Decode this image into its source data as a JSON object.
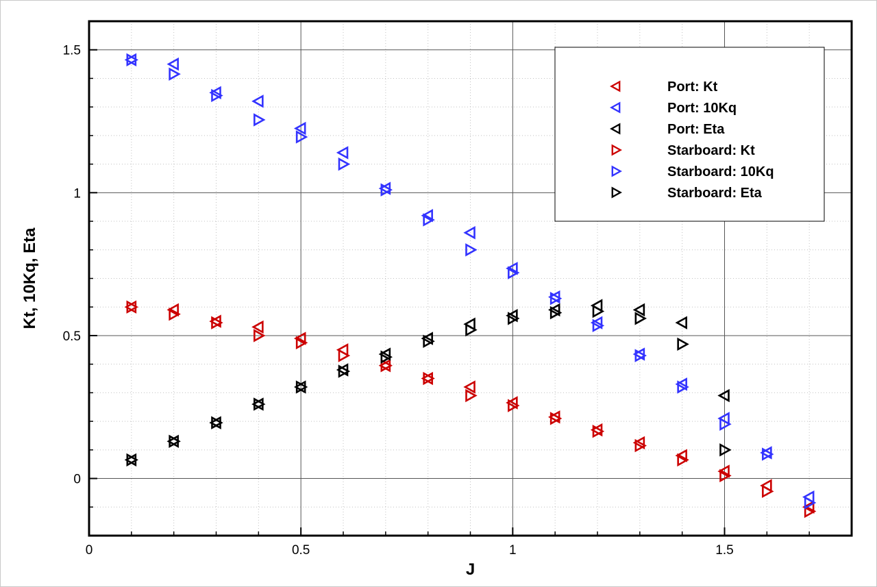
{
  "chart_data": {
    "type": "scatter",
    "xlabel": "J",
    "ylabel": "Kt, 10Kq, Eta",
    "xlim": [
      0,
      1.8
    ],
    "ylim": [
      -0.2,
      1.6
    ],
    "x_ticks": [
      0,
      0.5,
      1,
      1.5
    ],
    "y_ticks": [
      0,
      0.5,
      1,
      1.5
    ],
    "x_tick_labels": [
      "0",
      "0.5",
      "1",
      "1.5"
    ],
    "y_tick_labels": [
      "0",
      "0.5",
      "1",
      "1.5"
    ],
    "grid": true,
    "minor_grid": true,
    "legend_position": "top-right",
    "series": [
      {
        "name": "Port: Kt",
        "marker": "triangle-left",
        "color": "#cc0000",
        "x": [
          0.1,
          0.2,
          0.3,
          0.4,
          0.5,
          0.6,
          0.7,
          0.8,
          0.9,
          1.0,
          1.1,
          1.2,
          1.3,
          1.4,
          1.5,
          1.6,
          1.7
        ],
        "y": [
          0.6,
          0.59,
          0.55,
          0.53,
          0.49,
          0.45,
          0.395,
          0.35,
          0.32,
          0.265,
          0.215,
          0.17,
          0.125,
          0.08,
          0.025,
          -0.025,
          -0.1
        ]
      },
      {
        "name": "Port: 10Kq",
        "marker": "triangle-left",
        "color": "#3333ff",
        "x": [
          0.1,
          0.2,
          0.3,
          0.4,
          0.5,
          0.6,
          0.7,
          0.8,
          0.9,
          1.0,
          1.1,
          1.2,
          1.3,
          1.4,
          1.5,
          1.6,
          1.7
        ],
        "y": [
          1.465,
          1.45,
          1.35,
          1.32,
          1.225,
          1.14,
          1.015,
          0.92,
          0.86,
          0.735,
          0.635,
          0.545,
          0.435,
          0.33,
          0.21,
          0.09,
          -0.065
        ]
      },
      {
        "name": "Port: Eta",
        "marker": "triangle-left",
        "color": "#000000",
        "x": [
          0.1,
          0.2,
          0.3,
          0.4,
          0.5,
          0.6,
          0.7,
          0.8,
          0.9,
          1.0,
          1.1,
          1.2,
          1.3,
          1.4,
          1.5
        ],
        "y": [
          0.065,
          0.13,
          0.195,
          0.26,
          0.32,
          0.38,
          0.435,
          0.49,
          0.54,
          0.57,
          0.59,
          0.605,
          0.59,
          0.545,
          0.29
        ]
      },
      {
        "name": "Starboard: Kt",
        "marker": "triangle-right",
        "color": "#cc0000",
        "x": [
          0.1,
          0.2,
          0.3,
          0.4,
          0.5,
          0.6,
          0.7,
          0.8,
          0.9,
          1.0,
          1.1,
          1.2,
          1.3,
          1.4,
          1.5,
          1.6,
          1.7
        ],
        "y": [
          0.6,
          0.575,
          0.545,
          0.5,
          0.475,
          0.43,
          0.395,
          0.35,
          0.29,
          0.255,
          0.21,
          0.165,
          0.115,
          0.065,
          0.01,
          -0.045,
          -0.115
        ]
      },
      {
        "name": "Starboard: 10Kq",
        "marker": "triangle-right",
        "color": "#3333ff",
        "x": [
          0.1,
          0.2,
          0.3,
          0.4,
          0.5,
          0.6,
          0.7,
          0.8,
          0.9,
          1.0,
          1.1,
          1.2,
          1.3,
          1.4,
          1.5,
          1.6,
          1.7
        ],
        "y": [
          1.465,
          1.415,
          1.34,
          1.255,
          1.195,
          1.1,
          1.01,
          0.905,
          0.8,
          0.72,
          0.63,
          0.535,
          0.43,
          0.32,
          0.19,
          0.085,
          -0.085
        ]
      },
      {
        "name": "Starboard: Eta",
        "marker": "triangle-right",
        "color": "#000000",
        "x": [
          0.1,
          0.2,
          0.3,
          0.4,
          0.5,
          0.6,
          0.7,
          0.8,
          0.9,
          1.0,
          1.1,
          1.2,
          1.3,
          1.4,
          1.5
        ],
        "y": [
          0.065,
          0.13,
          0.195,
          0.26,
          0.32,
          0.375,
          0.425,
          0.48,
          0.52,
          0.56,
          0.58,
          0.585,
          0.56,
          0.47,
          0.1
        ]
      }
    ]
  }
}
